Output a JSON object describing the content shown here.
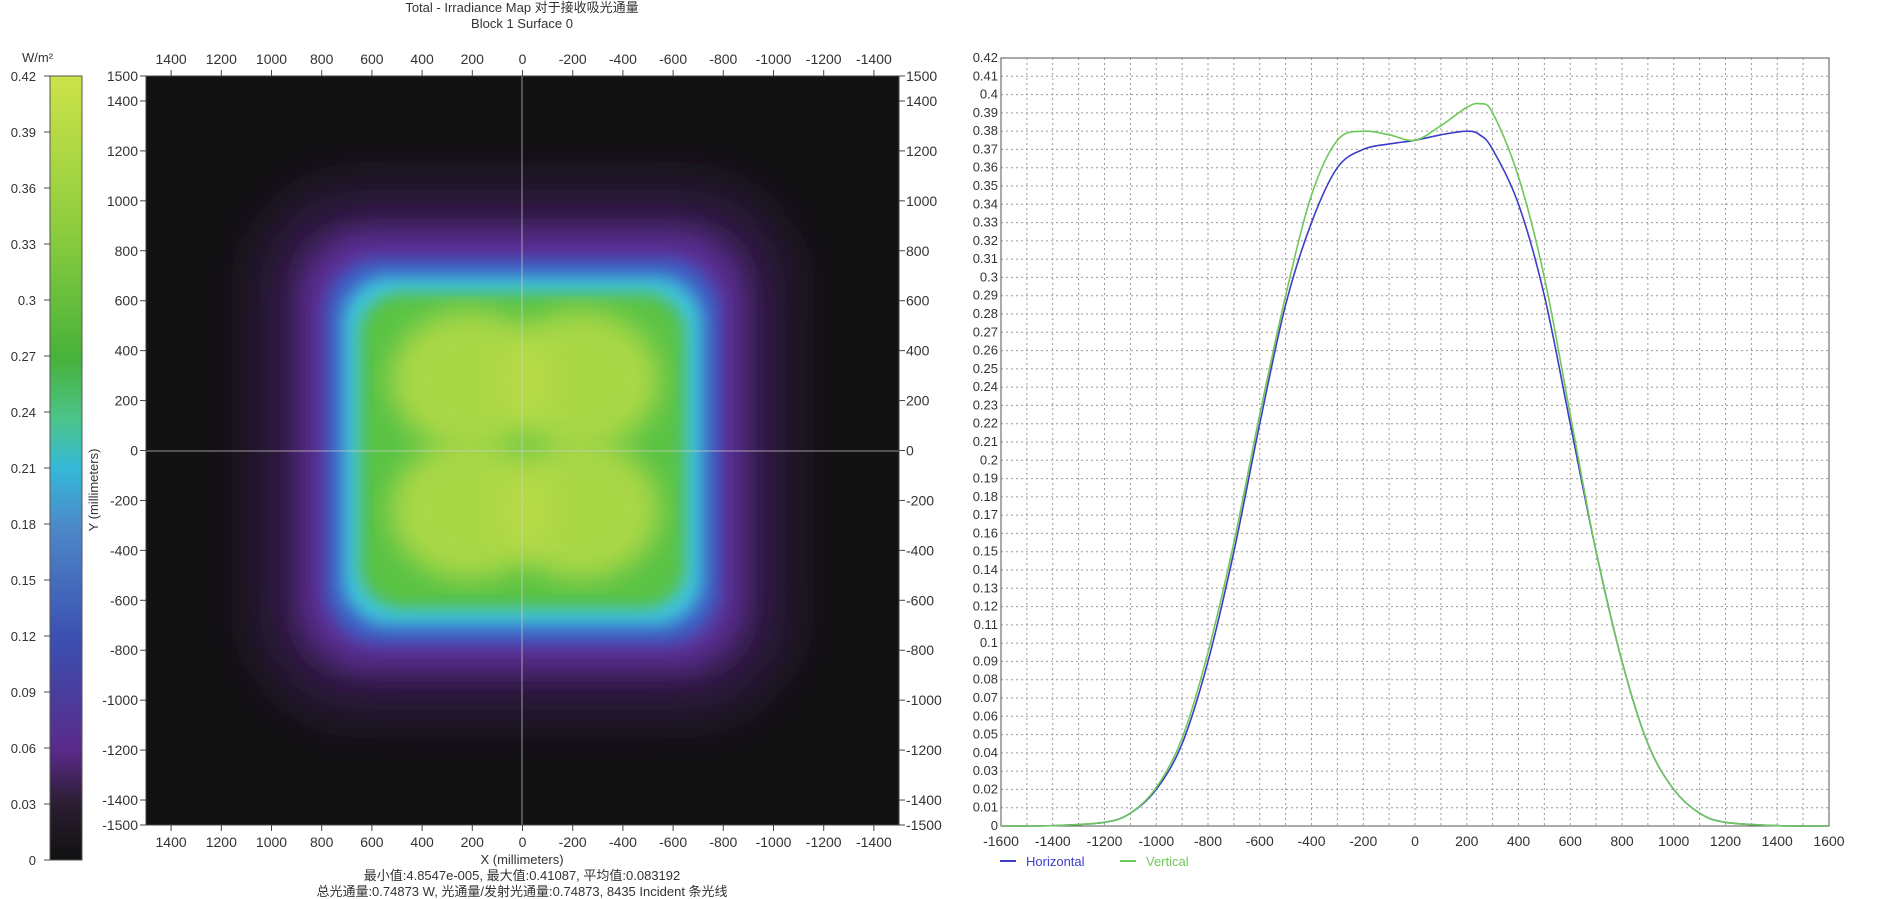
{
  "irradiance_map": {
    "title_line1": "Total - Irradiance Map 对于接收吸光通量",
    "title_line2": "Block 1 Surface 0",
    "colorbar_unit": "W/m²",
    "colorbar_ticks": [
      "0",
      "0.03",
      "0.06",
      "0.09",
      "0.12",
      "0.15",
      "0.18",
      "0.21",
      "0.24",
      "0.27",
      "0.3",
      "0.33",
      "0.36",
      "0.39",
      "0.42"
    ],
    "x_ticks": [
      "1400",
      "1200",
      "1000",
      "800",
      "600",
      "400",
      "200",
      "0",
      "-200",
      "-400",
      "-600",
      "-800",
      "-1000",
      "-1200",
      "-1400"
    ],
    "y_ticks": [
      "1500",
      "1400",
      "1200",
      "1000",
      "800",
      "600",
      "400",
      "200",
      "0",
      "-200",
      "-400",
      "-600",
      "-800",
      "-1000",
      "-1200",
      "-1400",
      "-1500"
    ],
    "xlabel": "X (millimeters)",
    "ylabel": "Y (millimeters)",
    "stats_line1": "最小值:4.8547e-005, 最大值:0.41087, 平均值:0.083192",
    "stats_line2": "总光通量:0.74873 W, 光通量/发射光通量:0.74873, 8435 Incident 条光线",
    "colors": {
      "background": "#121212",
      "low": "#5a2a8a",
      "mid": "#35b8d8",
      "high": "#c8e04a"
    }
  },
  "chart_data": {
    "type": "line",
    "x": [
      -1600,
      -1400,
      -1200,
      -1100,
      -1000,
      -900,
      -800,
      -700,
      -600,
      -500,
      -400,
      -300,
      -200,
      -100,
      0,
      100,
      200,
      250,
      300,
      400,
      500,
      600,
      700,
      800,
      900,
      1000,
      1100,
      1200,
      1400,
      1600
    ],
    "series": [
      {
        "name": "Horizontal",
        "color": "#3d3dc8",
        "values": [
          0,
          0.0002,
          0.002,
          0.007,
          0.02,
          0.045,
          0.09,
          0.15,
          0.22,
          0.285,
          0.33,
          0.36,
          0.37,
          0.373,
          0.375,
          0.378,
          0.38,
          0.378,
          0.37,
          0.34,
          0.29,
          0.22,
          0.15,
          0.09,
          0.045,
          0.02,
          0.007,
          0.002,
          0.0002,
          0
        ]
      },
      {
        "name": "Vertical",
        "color": "#6ec85a",
        "values": [
          0,
          0.0002,
          0.002,
          0.007,
          0.021,
          0.048,
          0.095,
          0.155,
          0.225,
          0.29,
          0.345,
          0.375,
          0.38,
          0.378,
          0.375,
          0.383,
          0.393,
          0.395,
          0.39,
          0.355,
          0.3,
          0.225,
          0.15,
          0.09,
          0.045,
          0.02,
          0.007,
          0.002,
          0.0002,
          0
        ]
      }
    ],
    "xlim": [
      -1600,
      1600
    ],
    "ylim": [
      0,
      0.42
    ],
    "x_ticks": [
      "-1600",
      "-1400",
      "-1200",
      "-1000",
      "-800",
      "-600",
      "-400",
      "-200",
      "0",
      "200",
      "400",
      "600",
      "800",
      "1000",
      "1200",
      "1400",
      "1600"
    ],
    "y_ticks": [
      "0",
      "0.01",
      "0.02",
      "0.03",
      "0.04",
      "0.05",
      "0.06",
      "0.07",
      "0.08",
      "0.09",
      "0.1",
      "0.11",
      "0.12",
      "0.13",
      "0.14",
      "0.15",
      "0.16",
      "0.17",
      "0.18",
      "0.19",
      "0.2",
      "0.21",
      "0.22",
      "0.23",
      "0.24",
      "0.25",
      "0.26",
      "0.27",
      "0.28",
      "0.29",
      "0.3",
      "0.31",
      "0.32",
      "0.33",
      "0.34",
      "0.35",
      "0.36",
      "0.37",
      "0.38",
      "0.39",
      "0.4",
      "0.41",
      "0.42"
    ],
    "grid": true,
    "legend": "bottom-left"
  }
}
